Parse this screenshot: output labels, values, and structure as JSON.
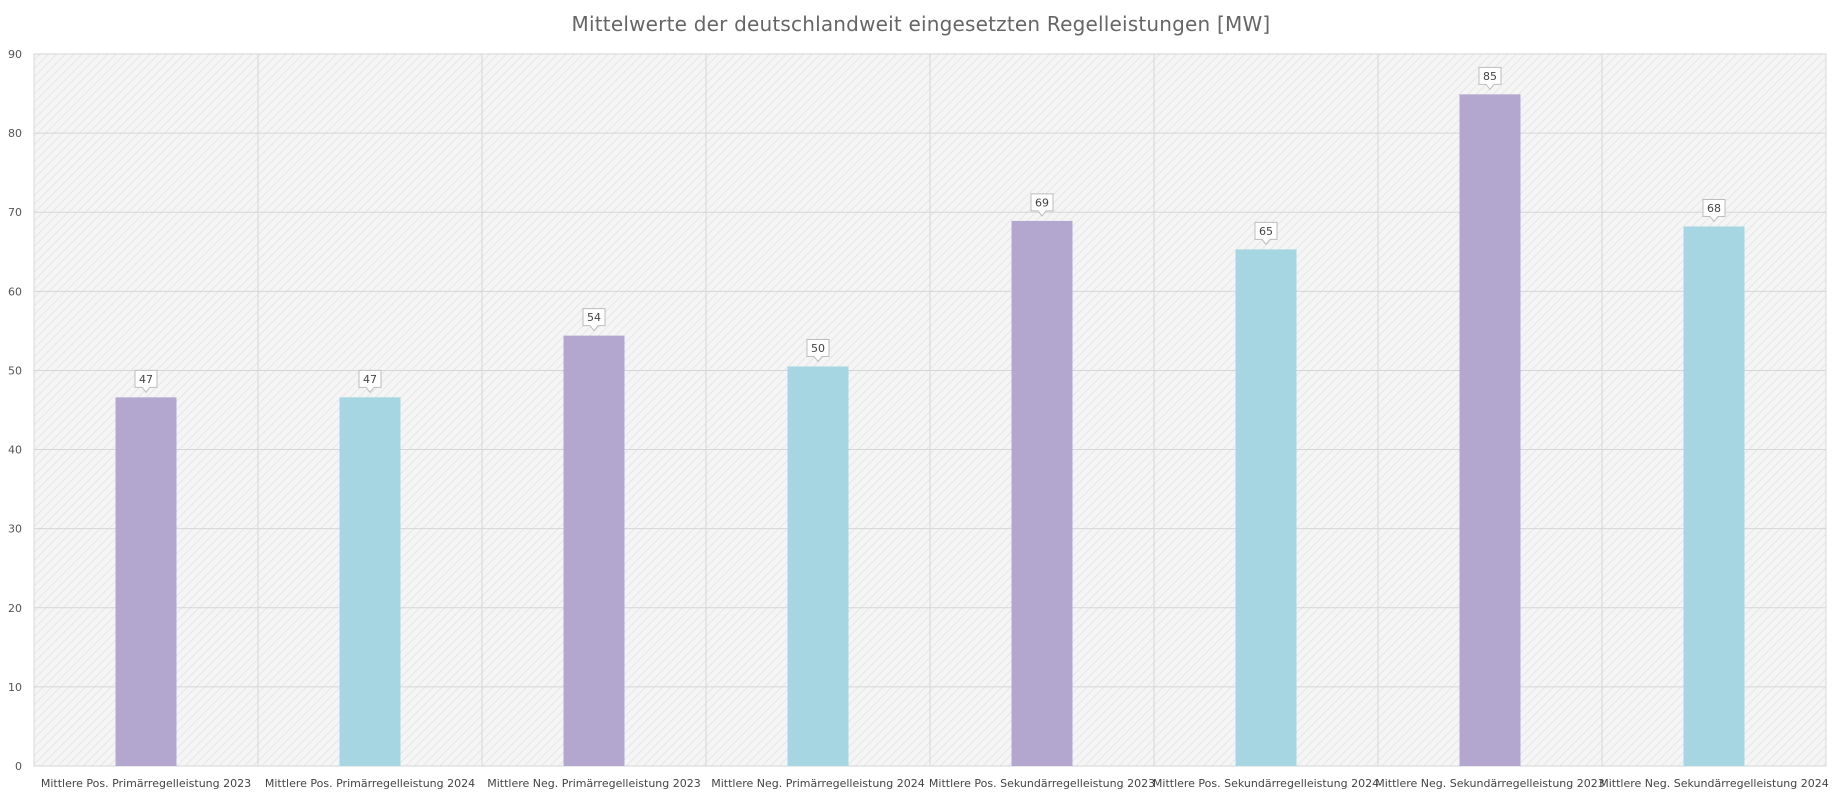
{
  "chart_data": {
    "type": "bar",
    "title": "Mittelwerte der deutschlandweit  eingesetzten Regelleistungen [MW]",
    "xlabel": "",
    "ylabel": "",
    "ylim": [
      0,
      90
    ],
    "yticks": [
      0,
      10,
      20,
      30,
      40,
      50,
      60,
      70,
      80,
      90
    ],
    "grid": true,
    "legend": "none",
    "categories": [
      "Mittlere Pos. Primärregelleistung 2023",
      "Mittlere Pos. Primärregelleistung  2024",
      "Mittlere Neg. Primärregelleistung 2023",
      "Mittlere Neg. Primärregelleistung 2024",
      "Mittlere Pos. Sekundärregelleistung 2023",
      "Mittlere Pos. Sekundärregelleistung 2024",
      "Mittlere Neg. Sekundärregelleistung 2023",
      "Mittlere Neg. Sekundärregelleistung 2024"
    ],
    "values": [
      46.6,
      46.6,
      54.4,
      50.5,
      68.9,
      65.3,
      84.9,
      68.2
    ],
    "data_labels": [
      "47",
      "47",
      "54",
      "50",
      "69",
      "65",
      "85",
      "68"
    ],
    "colors": [
      "#b3a6cf",
      "#a5d6e2",
      "#b3a6cf",
      "#a5d6e2",
      "#b3a6cf",
      "#a5d6e2",
      "#b3a6cf",
      "#a5d6e2"
    ]
  }
}
